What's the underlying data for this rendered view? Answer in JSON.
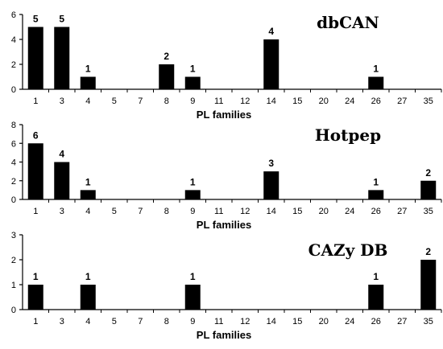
{
  "chart_data": [
    {
      "type": "bar",
      "title": "dbCAN",
      "xlabel": "PL families",
      "ylabel": "",
      "ylim": [
        0,
        6
      ],
      "yticks": [
        0,
        2,
        4,
        6
      ],
      "categories": [
        "1",
        "3",
        "4",
        "5",
        "7",
        "8",
        "9",
        "11",
        "12",
        "14",
        "15",
        "20",
        "24",
        "26",
        "27",
        "35"
      ],
      "values": [
        5,
        5,
        1,
        0,
        0,
        2,
        1,
        0,
        0,
        4,
        0,
        0,
        0,
        1,
        0,
        0
      ],
      "color": "#000000",
      "grid": false,
      "legend": "none"
    },
    {
      "type": "bar",
      "title": "Hotpep",
      "xlabel": "PL families",
      "ylabel": "",
      "ylim": [
        0,
        8
      ],
      "yticks": [
        0,
        2,
        4,
        6,
        8
      ],
      "categories": [
        "1",
        "3",
        "4",
        "5",
        "7",
        "8",
        "9",
        "11",
        "12",
        "14",
        "15",
        "20",
        "24",
        "26",
        "27",
        "35"
      ],
      "values": [
        6,
        4,
        1,
        0,
        0,
        0,
        1,
        0,
        0,
        3,
        0,
        0,
        0,
        1,
        0,
        2
      ],
      "color": "#000000",
      "grid": false,
      "legend": "none"
    },
    {
      "type": "bar",
      "title": "CAZy DB",
      "xlabel": "PL families",
      "ylabel": "",
      "ylim": [
        0,
        3
      ],
      "yticks": [
        0,
        1,
        2,
        3
      ],
      "categories": [
        "1",
        "3",
        "4",
        "5",
        "7",
        "8",
        "9",
        "11",
        "12",
        "14",
        "15",
        "20",
        "24",
        "26",
        "27",
        "35"
      ],
      "values": [
        1,
        0,
        1,
        0,
        0,
        0,
        1,
        0,
        0,
        0,
        0,
        0,
        0,
        1,
        0,
        2
      ],
      "color": "#000000",
      "grid": false,
      "legend": "none"
    }
  ]
}
